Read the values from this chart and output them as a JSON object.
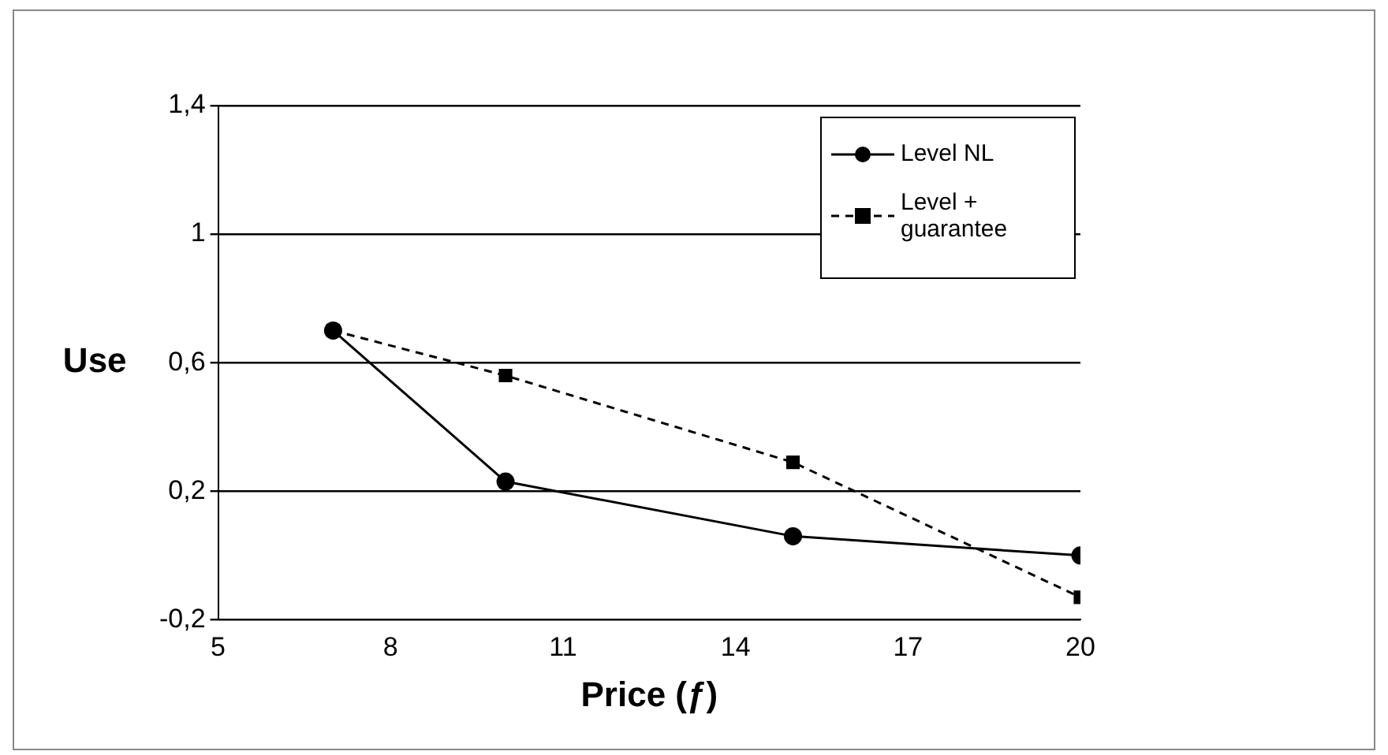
{
  "chart_data": {
    "type": "line",
    "xlabel": "Price (ƒ)",
    "ylabel": "Use",
    "xlim": [
      5,
      20
    ],
    "xticks": [
      5,
      8,
      11,
      14,
      17,
      20
    ],
    "ylim": [
      -0.2,
      1.4
    ],
    "yticks": [
      {
        "value": -0.2,
        "label": "-0,2"
      },
      {
        "value": 0.2,
        "label": "0,2"
      },
      {
        "value": 0.6,
        "label": "0,6"
      },
      {
        "value": 1,
        "label": "1"
      },
      {
        "value": 1.4,
        "label": "1,4"
      }
    ],
    "grid": "y",
    "legend": "top right",
    "series": [
      {
        "name": "Level NL",
        "color": "#000000",
        "marker": "circle",
        "line_style": "solid",
        "x": [
          7,
          10,
          15,
          20
        ],
        "values": [
          0.7,
          0.23,
          0.06,
          0.0
        ]
      },
      {
        "name": "Level + guarantee",
        "color": "#000000",
        "marker": "square",
        "line_style": "dashed",
        "x": [
          7,
          10,
          15,
          20
        ],
        "values": [
          0.7,
          0.56,
          0.29,
          -0.13
        ]
      }
    ]
  }
}
